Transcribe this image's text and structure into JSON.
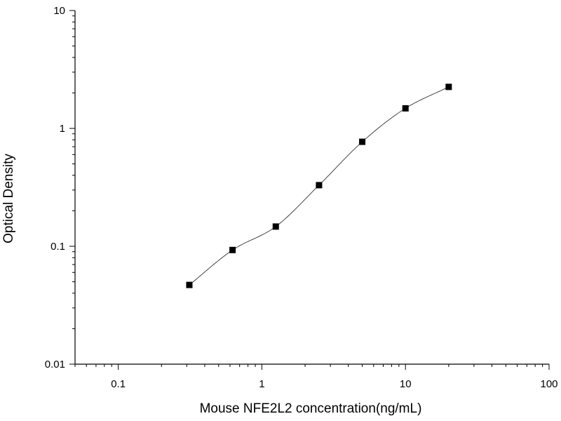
{
  "chart_data": {
    "type": "scatter",
    "title": "",
    "xlabel": "Mouse NFE2L2 concentration(ng/mL)",
    "ylabel": "Optical Density",
    "x_scale": "log",
    "y_scale": "log",
    "xlim": [
      0.05,
      100
    ],
    "ylim": [
      0.01,
      10
    ],
    "x_tick_labels": [
      "0.1",
      "1",
      "10",
      "100"
    ],
    "y_tick_labels": [
      "0.01",
      "0.1",
      "1",
      "10"
    ],
    "grid": false,
    "legend": "none",
    "marker": "square",
    "marker_color": "#000000",
    "curve_color": "#333333",
    "fit_curve": "four-parameter logistic",
    "series": [
      {
        "x": [
          0.3125,
          0.625,
          1.25,
          2.5,
          5,
          10,
          20
        ],
        "y": [
          0.047,
          0.093,
          0.147,
          0.33,
          0.77,
          1.48,
          2.25
        ]
      }
    ]
  }
}
